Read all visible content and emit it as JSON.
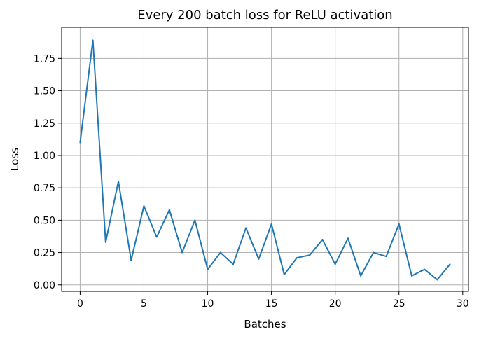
{
  "chart_data": {
    "type": "line",
    "title": "Every 200 batch loss for ReLU activation",
    "xlabel": "Batches",
    "ylabel": "Loss",
    "xlim": [
      -1.45,
      30.45
    ],
    "ylim": [
      -0.05,
      1.99
    ],
    "xticks": [
      0,
      5,
      10,
      15,
      20,
      25,
      30
    ],
    "yticks": [
      "0.00",
      "0.25",
      "0.50",
      "0.75",
      "1.00",
      "1.25",
      "1.50",
      "1.75"
    ],
    "grid": true,
    "series": [
      {
        "color": "#1f77b4",
        "x": [
          0,
          1,
          2,
          3,
          4,
          5,
          6,
          7,
          8,
          9,
          10,
          11,
          12,
          13,
          14,
          15,
          16,
          17,
          18,
          19,
          20,
          21,
          22,
          23,
          24,
          25,
          26,
          27,
          28,
          29
        ],
        "y": [
          1.1,
          1.89,
          0.33,
          0.8,
          0.19,
          0.61,
          0.37,
          0.58,
          0.25,
          0.5,
          0.12,
          0.25,
          0.16,
          0.44,
          0.2,
          0.47,
          0.08,
          0.21,
          0.23,
          0.35,
          0.16,
          0.36,
          0.07,
          0.25,
          0.22,
          0.47,
          0.07,
          0.12,
          0.04,
          0.16
        ]
      }
    ]
  }
}
